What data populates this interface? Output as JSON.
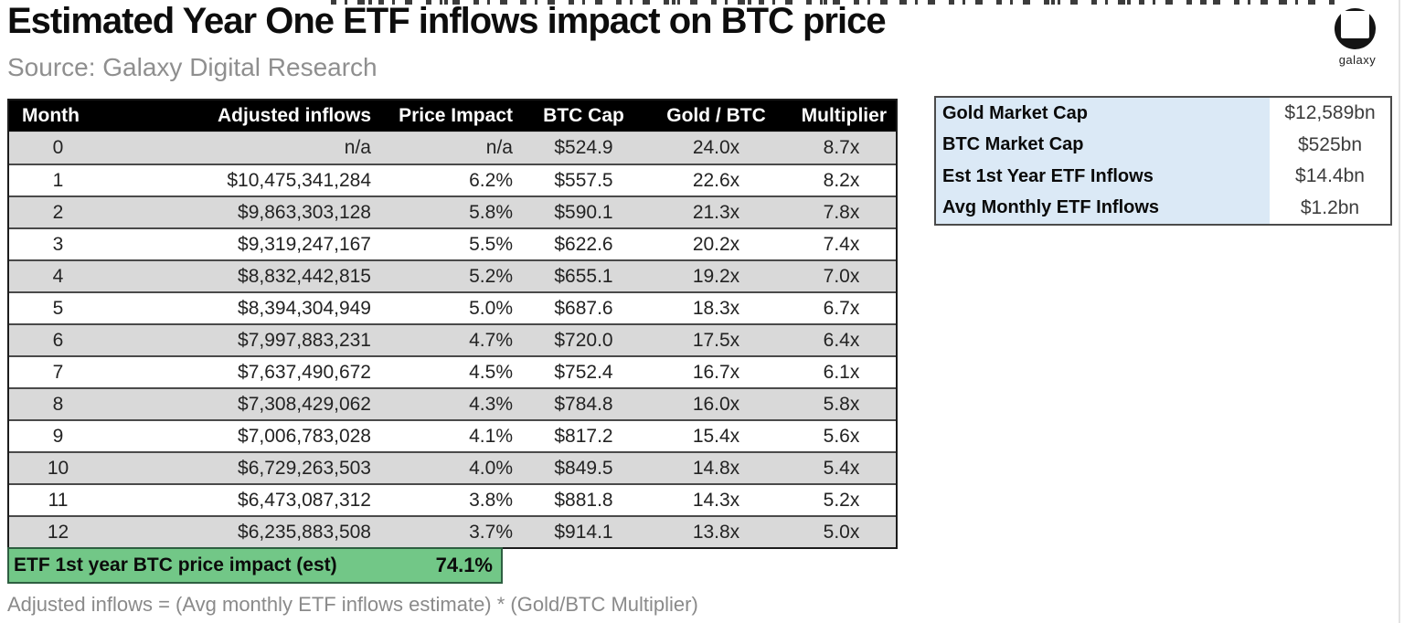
{
  "brand": {
    "logo_label": "galaxy"
  },
  "chart_data": {
    "type": "table",
    "title": "Estimated Year One ETF inflows impact on BTC price",
    "source": "Source: Galaxy Digital Research",
    "columns": [
      "Month",
      "Adjusted inflows",
      "Price Impact",
      "BTC Cap",
      "Gold / BTC",
      "Multiplier"
    ],
    "rows": [
      [
        "0",
        "n/a",
        "n/a",
        "$524.9",
        "24.0x",
        "8.7x"
      ],
      [
        "1",
        "$10,475,341,284",
        "6.2%",
        "$557.5",
        "22.6x",
        "8.2x"
      ],
      [
        "2",
        "$9,863,303,128",
        "5.8%",
        "$590.1",
        "21.3x",
        "7.8x"
      ],
      [
        "3",
        "$9,319,247,167",
        "5.5%",
        "$622.6",
        "20.2x",
        "7.4x"
      ],
      [
        "4",
        "$8,832,442,815",
        "5.2%",
        "$655.1",
        "19.2x",
        "7.0x"
      ],
      [
        "5",
        "$8,394,304,949",
        "5.0%",
        "$687.6",
        "18.3x",
        "6.7x"
      ],
      [
        "6",
        "$7,997,883,231",
        "4.7%",
        "$720.0",
        "17.5x",
        "6.4x"
      ],
      [
        "7",
        "$7,637,490,672",
        "4.5%",
        "$752.4",
        "16.7x",
        "6.1x"
      ],
      [
        "8",
        "$7,308,429,062",
        "4.3%",
        "$784.8",
        "16.0x",
        "5.8x"
      ],
      [
        "9",
        "$7,006,783,028",
        "4.1%",
        "$817.2",
        "15.4x",
        "5.6x"
      ],
      [
        "10",
        "$6,729,263,503",
        "4.0%",
        "$849.5",
        "14.8x",
        "5.4x"
      ],
      [
        "11",
        "$6,473,087,312",
        "3.8%",
        "$881.8",
        "14.3x",
        "5.2x"
      ],
      [
        "12",
        "$6,235,883,508",
        "3.7%",
        "$914.1",
        "13.8x",
        "5.0x"
      ]
    ],
    "summary_row": {
      "label": "ETF 1st year BTC price impact (est)",
      "value": "74.1%"
    },
    "assumptions": [
      {
        "label": "Gold Market Cap",
        "value": "$12,589bn"
      },
      {
        "label": "BTC Market Cap",
        "value": "$525bn"
      },
      {
        "label": "Est 1st Year ETF Inflows",
        "value": "$14.4bn"
      },
      {
        "label": "Avg Monthly ETF Inflows",
        "value": "$1.2bn"
      }
    ],
    "footnote": "Adjusted inflows = (Avg monthly ETF inflows estimate) * (Gold/BTC Multiplier)"
  },
  "colors": {
    "header_bg": "#000000",
    "alt_row_gray": "#d9d9d9",
    "highlight_green": "#72c787",
    "panel_blue": "#dbe9f6"
  }
}
